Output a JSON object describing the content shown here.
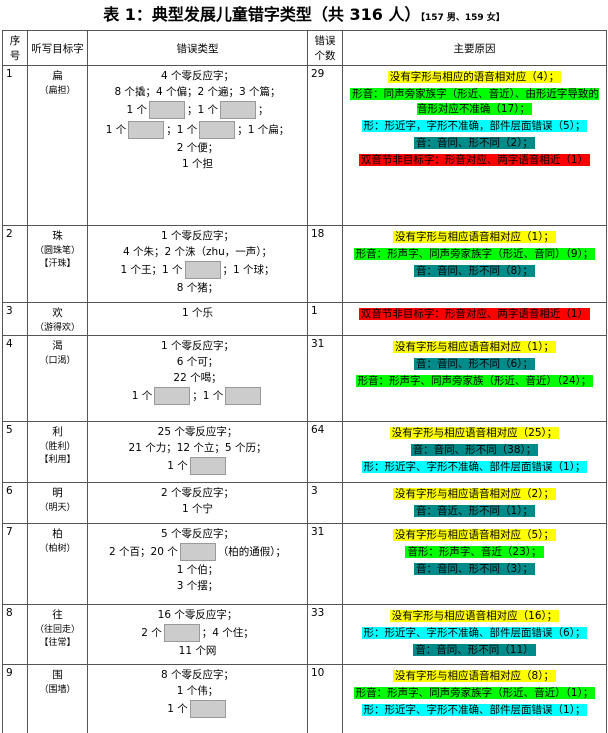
{
  "title": "表 1：典型发展儿童错字类型（共 316 人）",
  "subtitle": "【157 男、159 女】",
  "headers": [
    "序号",
    "听写目标字",
    "错误类型",
    "错误个数",
    "主要原因"
  ],
  "rows": [
    {
      "no": 1,
      "target": "扁",
      "notes": [
        "（扁担）"
      ],
      "count": 29,
      "errors": [
        [
          "4 个零反应字；"
        ],
        [
          "8 个撬；4 个偏；2 个遍；3 个篇；"
        ],
        [
          "1 个",
          "；1 个",
          "；"
        ],
        [
          "1 个",
          "；1 个",
          "；1 个扁；"
        ],
        [
          "2 个便；"
        ],
        [
          "1 个担"
        ]
      ],
      "reasons": [
        {
          "text": "没有字形与相应的语音相对应（4）；",
          "color": "#ffff00"
        },
        {
          "text": "形音：同声旁家族字（形近、音近）、由形近字导致的音形对应不准确（17）；",
          "color": "#00ff00"
        },
        {
          "text": "形：形近字，字形不准确，部件层面错误（5）；",
          "color": "#00ffff"
        },
        {
          "text": "音：音同、形不同（2）；",
          "color": "#008b8b"
        },
        {
          "text": "双音节非目标字：形音对应、两字语音相近（1）",
          "color": "#ff0000"
        }
      ]
    },
    {
      "no": 2,
      "target": "珠",
      "notes": [
        "（圆珠笔）",
        "【汗珠】"
      ],
      "count": 18,
      "errors": [
        [
          "1 个零反应字；"
        ],
        [
          "4 个朱；2 个洙（zhu，一声）；"
        ],
        [
          "1 个王；1 个",
          "；1 个球；"
        ],
        [
          "8 个猪；"
        ]
      ],
      "reasons": [
        {
          "text": "没有字形与相应语音相对应（1）；",
          "color": "#ffff00"
        },
        {
          "text": "形音：形声字、同声旁家族字（形近、音同）（9）；",
          "color": "#00ff00"
        },
        {
          "text": "音：音同、形不同（8）；",
          "color": "#008b8b"
        }
      ]
    },
    {
      "no": 3,
      "target": "欢",
      "notes": [
        "（游得欢）"
      ],
      "count": 1,
      "errors": [
        [
          "1 个乐"
        ]
      ],
      "reasons": [
        {
          "text": "双音节非目标字：形音对应、两字语音相近（1）",
          "color": "#ff0000"
        }
      ]
    },
    {
      "no": 4,
      "target": "渴",
      "notes": [
        "（口渴）"
      ],
      "count": 31,
      "errors": [
        [
          "1 个零反应字；"
        ],
        [
          "6 个可；"
        ],
        [
          "22 个喝；"
        ],
        [
          "1 个",
          "；1 个"
        ]
      ],
      "reasons": [
        {
          "text": "没有字形与相应语音相对应（1）；",
          "color": "#ffff00"
        },
        {
          "text": "音：音同、形不同（6）；",
          "color": "#008b8b"
        },
        {
          "text": "形音：形声字、同声旁家族（形近、音近）（24）；",
          "color": "#00ff00"
        }
      ]
    },
    {
      "no": 5,
      "target": "利",
      "notes": [
        "（胜利）",
        "【利用】"
      ],
      "count": 64,
      "errors": [
        [
          "25 个零反应字；"
        ],
        [
          "21 个力；12 个立；5 个历；"
        ],
        [
          "1 个"
        ]
      ],
      "reasons": [
        {
          "text": "没有字形与相应语音相对应（25）；",
          "color": "#ffff00"
        },
        {
          "text": "音：音同、形不同（38）；",
          "color": "#008b8b"
        },
        {
          "text": "形：形近字、字形不准确、部件层面错误（1）；",
          "color": "#00ffff"
        }
      ]
    },
    {
      "no": 6,
      "target": "明",
      "notes": [
        "（明天）"
      ],
      "count": 3,
      "errors": [
        [
          "2 个零反应字；"
        ],
        [
          "1 个宁"
        ]
      ],
      "reasons": [
        {
          "text": "没有字形与相应语音相对应（2）；",
          "color": "#ffff00"
        },
        {
          "text": "音：音近、形不同（1）；",
          "color": "#008b8b"
        }
      ]
    },
    {
      "no": 7,
      "target": "柏",
      "notes": [
        "（柏树）"
      ],
      "count": 31,
      "errors": [
        [
          "5 个零反应字；"
        ],
        [
          "2 个百；20 个",
          "（柏的通假）；"
        ],
        [
          "1 个伯；"
        ],
        [
          "3 个摆；"
        ]
      ],
      "reasons": [
        {
          "text": "没有字形与相应语音相对应（5）；",
          "color": "#ffff00"
        },
        {
          "text": "音形：形声字、音近（23）；",
          "color": "#00ff00"
        },
        {
          "text": "音：音同、形不同（3）；",
          "color": "#008b8b"
        }
      ]
    },
    {
      "no": 8,
      "target": "往",
      "notes": [
        "（往回走）",
        "【往常】"
      ],
      "count": 33,
      "errors": [
        [
          "16 个零反应字；"
        ],
        [
          "2 个",
          "；4 个住；"
        ],
        [
          "11 个网"
        ]
      ],
      "reasons": [
        {
          "text": "没有字形与相应语音相对应（16）；",
          "color": "#ffff00"
        },
        {
          "text": "形：形近字、字形不准确、部件层面错误（6）；",
          "color": "#00ffff"
        },
        {
          "text": "音：音同、形不同（11）",
          "color": "#008b8b"
        }
      ]
    },
    {
      "no": 9,
      "target": "围",
      "notes": [
        "（围墙）"
      ],
      "count": 10,
      "errors": [
        [
          "8 个零反应字；"
        ],
        [
          "1 个伟；"
        ],
        [
          "1 个"
        ]
      ],
      "reasons": [
        {
          "text": "没有字形与相应语音相对应（8）；",
          "color": "#ffff00"
        },
        {
          "text": "形音：形声字、同声旁家族字（形近、音近）（1）；",
          "color": "#00ff00"
        },
        {
          "text": "形：形近字、字形不准确、部件层面错误（1）；",
          "color": "#00ffff"
        }
      ]
    }
  ]
}
